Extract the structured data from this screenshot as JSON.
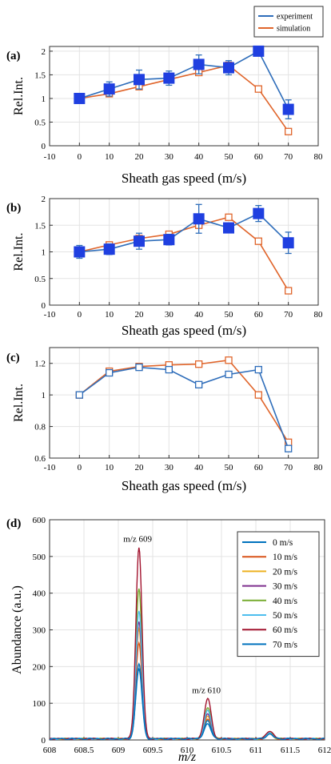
{
  "chart_data": [
    {
      "panel_label": "(a)",
      "type": "line",
      "xlabel": "Sheath gas speed (m/s)",
      "ylabel": "Rel.Int.",
      "xlim": [
        -10,
        80
      ],
      "ylim": [
        0,
        2.1
      ],
      "x_ticks": [
        "-10",
        "0",
        "10",
        "20",
        "30",
        "40",
        "50",
        "60",
        "70",
        "80"
      ],
      "y_ticks": [
        "0",
        "0.5",
        "1",
        "1.5",
        "2"
      ],
      "grid": true,
      "legend": {
        "placement": "above-top-right",
        "entries": [
          "experiment",
          "simulation"
        ]
      },
      "series": [
        {
          "name": "experiment",
          "color": "#2E6DBA",
          "marker": "filled-square",
          "x": [
            0,
            10,
            20,
            30,
            40,
            50,
            60,
            70
          ],
          "y": [
            1.0,
            1.2,
            1.4,
            1.43,
            1.72,
            1.65,
            2.0,
            0.77
          ],
          "error": [
            0.05,
            0.15,
            0.2,
            0.15,
            0.2,
            0.15,
            0.1,
            0.2
          ]
        },
        {
          "name": "simulation",
          "color": "#E0652B",
          "marker": "open-square",
          "x": [
            0,
            10,
            20,
            30,
            40,
            50,
            60,
            70
          ],
          "y": [
            1.0,
            1.1,
            1.25,
            1.4,
            1.55,
            1.7,
            1.2,
            0.3
          ]
        }
      ]
    },
    {
      "panel_label": "(b)",
      "type": "line",
      "xlabel": "Sheath gas speed (m/s)",
      "ylabel": "Rel.Int.",
      "xlim": [
        -10,
        80
      ],
      "ylim": [
        0,
        2
      ],
      "x_ticks": [
        "-10",
        "0",
        "10",
        "20",
        "30",
        "40",
        "50",
        "60",
        "70",
        "80"
      ],
      "y_ticks": [
        "0",
        "0.5",
        "1",
        "1.5",
        "2"
      ],
      "grid": true,
      "series": [
        {
          "name": "experiment",
          "color": "#2E6DBA",
          "marker": "filled-square",
          "x": [
            0,
            10,
            20,
            30,
            40,
            50,
            60,
            70
          ],
          "y": [
            1.0,
            1.05,
            1.2,
            1.23,
            1.62,
            1.45,
            1.72,
            1.17
          ],
          "error": [
            0.12,
            0.1,
            0.15,
            0.1,
            0.27,
            0.08,
            0.15,
            0.2
          ]
        },
        {
          "name": "simulation",
          "color": "#E0652B",
          "marker": "open-square",
          "x": [
            0,
            10,
            20,
            30,
            40,
            50,
            60,
            70
          ],
          "y": [
            1.0,
            1.13,
            1.25,
            1.33,
            1.5,
            1.65,
            1.2,
            0.27
          ]
        }
      ]
    },
    {
      "panel_label": "(c)",
      "type": "line",
      "xlabel": "Sheath gas speed (m/s)",
      "ylabel": "Rel.Int.",
      "xlim": [
        -10,
        80
      ],
      "ylim": [
        0.6,
        1.3
      ],
      "x_ticks": [
        "-10",
        "0",
        "10",
        "20",
        "30",
        "40",
        "50",
        "60",
        "70",
        "80"
      ],
      "y_ticks": [
        "0.6",
        "0.8",
        "1",
        "1.2"
      ],
      "grid": true,
      "series": [
        {
          "name": "experiment",
          "color": "#2E6DBA",
          "marker": "open-square",
          "x": [
            0,
            10,
            20,
            30,
            40,
            50,
            60,
            70
          ],
          "y": [
            1.0,
            1.14,
            1.175,
            1.16,
            1.065,
            1.13,
            1.16,
            0.66
          ]
        },
        {
          "name": "simulation",
          "color": "#E0652B",
          "marker": "open-square",
          "x": [
            0,
            10,
            20,
            30,
            40,
            50,
            60,
            70
          ],
          "y": [
            1.0,
            1.15,
            1.18,
            1.19,
            1.195,
            1.22,
            1.0,
            0.7
          ]
        }
      ]
    },
    {
      "panel_label": "(d)",
      "type": "line",
      "xlabel": "m/z",
      "ylabel": "Abundance (a.u.)",
      "xlim": [
        608,
        612
      ],
      "ylim": [
        0,
        600
      ],
      "x_ticks": [
        "608",
        "608.5",
        "609",
        "609.5",
        "610",
        "610.5",
        "611",
        "611.5",
        "612"
      ],
      "y_ticks": [
        "0",
        "100",
        "200",
        "300",
        "400",
        "500",
        "600"
      ],
      "grid": true,
      "legend": {
        "placement": "top-right"
      },
      "annotations": [
        {
          "text": "m/z 609",
          "x": 609.28,
          "y": 540
        },
        {
          "text": "m/z 610",
          "x": 610.28,
          "y": 128
        }
      ],
      "peaks": [
        {
          "center": 609.3,
          "width": 0.045
        },
        {
          "center": 610.3,
          "width": 0.05
        },
        {
          "center": 611.2,
          "width": 0.05
        }
      ],
      "series": [
        {
          "name": "0 m/s",
          "color": "#0072BD",
          "peak_heights": [
            190,
            40,
            12
          ]
        },
        {
          "name": "10 m/s",
          "color": "#D95319",
          "peak_heights": [
            260,
            55,
            14
          ]
        },
        {
          "name": "20 m/s",
          "color": "#EDB120",
          "peak_heights": [
            300,
            62,
            15
          ]
        },
        {
          "name": "30 m/s",
          "color": "#7E2F8E",
          "peak_heights": [
            320,
            70,
            16
          ]
        },
        {
          "name": "40 m/s",
          "color": "#77AC30",
          "peak_heights": [
            410,
            85,
            18
          ]
        },
        {
          "name": "50 m/s",
          "color": "#4DBEEE",
          "peak_heights": [
            350,
            78,
            17
          ]
        },
        {
          "name": "60 m/s",
          "color": "#A2142F",
          "peak_heights": [
            520,
            110,
            22
          ]
        },
        {
          "name": "70 m/s",
          "color": "#0072BD",
          "peak_heights": [
            205,
            48,
            13
          ]
        }
      ]
    }
  ]
}
